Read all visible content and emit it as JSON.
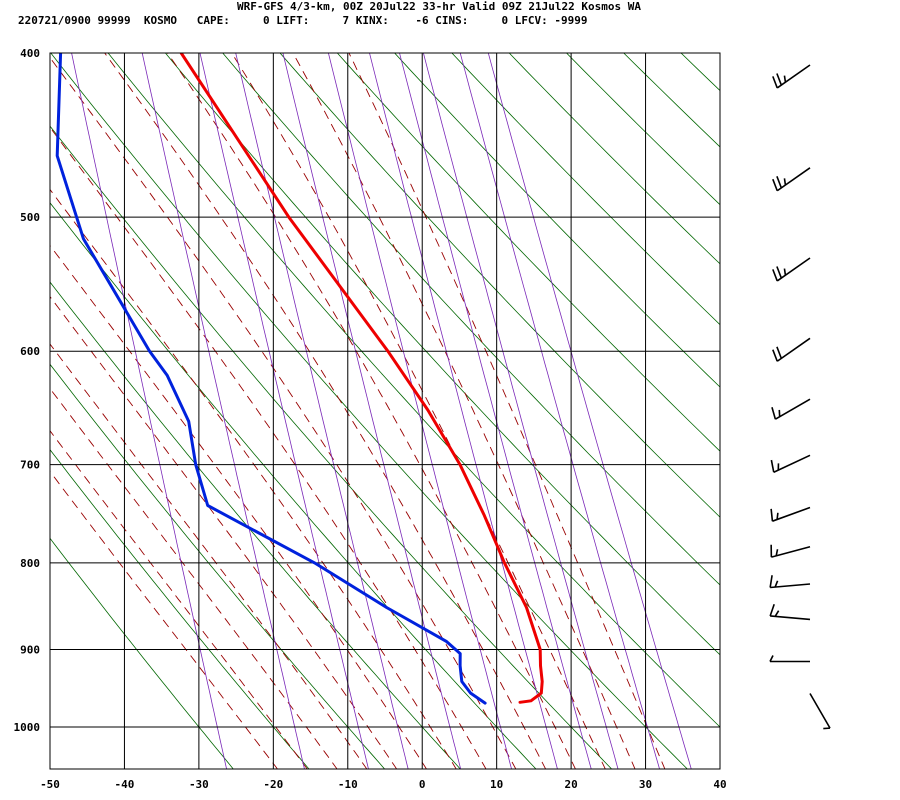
{
  "header": {
    "title": "WRF-GFS 4/3-km, 00Z 20Jul22 33-hr Valid 09Z 21Jul22 Kosmos WA",
    "info_line": "220721/0900 99999  KOSMO   CAPE:     0 LIFT:     7 KINX:    -6 CINS:     0 LFCV: -9999"
  },
  "chart_data": {
    "type": "line",
    "title": "WRF-GFS 4/3-km, 00Z 20Jul22 33-hr Valid 09Z 21Jul22 Kosmos WA",
    "xlabel": "",
    "ylabel": "",
    "x_scale": "skew-T",
    "y_scale": "log",
    "xlim": [
      -50,
      40
    ],
    "ylim": [
      1040,
      400
    ],
    "x_ticks": [
      -50,
      -40,
      -30,
      -20,
      -10,
      0,
      10,
      20,
      30,
      40
    ],
    "x_tick_labels": [
      "-50",
      "-40",
      "-30",
      "-20",
      "-10",
      "0",
      "10",
      "20",
      "30",
      "40"
    ],
    "y_ticks": [
      400,
      500,
      600,
      700,
      800,
      900,
      1000
    ],
    "y_tick_labels": [
      "400",
      "500",
      "600",
      "700",
      "800",
      "900",
      "1000"
    ],
    "grid": true,
    "colors": {
      "temperature": "#ee0000",
      "dewpoint": "#0022dd",
      "dry_adiabat": "#006600",
      "moist_adiabat": "#990000",
      "mixing_ratio": "#7a28b8"
    },
    "series": [
      {
        "key": "temperature",
        "points": [
          {
            "p": 400,
            "t": -22.3
          },
          {
            "p": 500,
            "t": -10.3
          },
          {
            "p": 600,
            "t": 1.0
          },
          {
            "p": 650,
            "t": 5.5
          },
          {
            "p": 700,
            "t": 9.0
          },
          {
            "p": 750,
            "t": 11.5
          },
          {
            "p": 800,
            "t": 13.5
          },
          {
            "p": 850,
            "t": 15.8
          },
          {
            "p": 900,
            "t": 17.0
          },
          {
            "p": 920,
            "t": 16.8
          },
          {
            "p": 940,
            "t": 16.8
          },
          {
            "p": 955,
            "t": 16.5
          },
          {
            "p": 965,
            "t": 15.0
          },
          {
            "p": 967,
            "t": 13.5
          }
        ]
      },
      {
        "key": "dewpoint",
        "points": [
          {
            "p": 400,
            "t": -38.5
          },
          {
            "p": 460,
            "t": -40.5
          },
          {
            "p": 515,
            "t": -38.2
          },
          {
            "p": 600,
            "t": -31.0
          },
          {
            "p": 620,
            "t": -29.0
          },
          {
            "p": 660,
            "t": -26.8
          },
          {
            "p": 700,
            "t": -26.5
          },
          {
            "p": 740,
            "t": -25.5
          },
          {
            "p": 800,
            "t": -12.0
          },
          {
            "p": 850,
            "t": -3.0
          },
          {
            "p": 890,
            "t": 4.5
          },
          {
            "p": 905,
            "t": 6.2
          },
          {
            "p": 920,
            "t": 6.0
          },
          {
            "p": 940,
            "t": 6.0
          },
          {
            "p": 955,
            "t": 7.0
          },
          {
            "p": 968,
            "t": 8.8
          }
        ]
      }
    ],
    "wind_barbs": [
      {
        "p": 400,
        "dir": 235,
        "spd": 25
      },
      {
        "p": 460,
        "dir": 235,
        "spd": 25
      },
      {
        "p": 520,
        "dir": 235,
        "spd": 25
      },
      {
        "p": 580,
        "dir": 235,
        "spd": 20
      },
      {
        "p": 630,
        "dir": 240,
        "spd": 15
      },
      {
        "p": 680,
        "dir": 245,
        "spd": 15
      },
      {
        "p": 730,
        "dir": 250,
        "spd": 15
      },
      {
        "p": 770,
        "dir": 255,
        "spd": 15
      },
      {
        "p": 810,
        "dir": 265,
        "spd": 15
      },
      {
        "p": 850,
        "dir": 275,
        "spd": 15
      },
      {
        "p": 900,
        "dir": 270,
        "spd": 5
      },
      {
        "p": 940,
        "dir": 150,
        "spd": 5
      }
    ]
  }
}
